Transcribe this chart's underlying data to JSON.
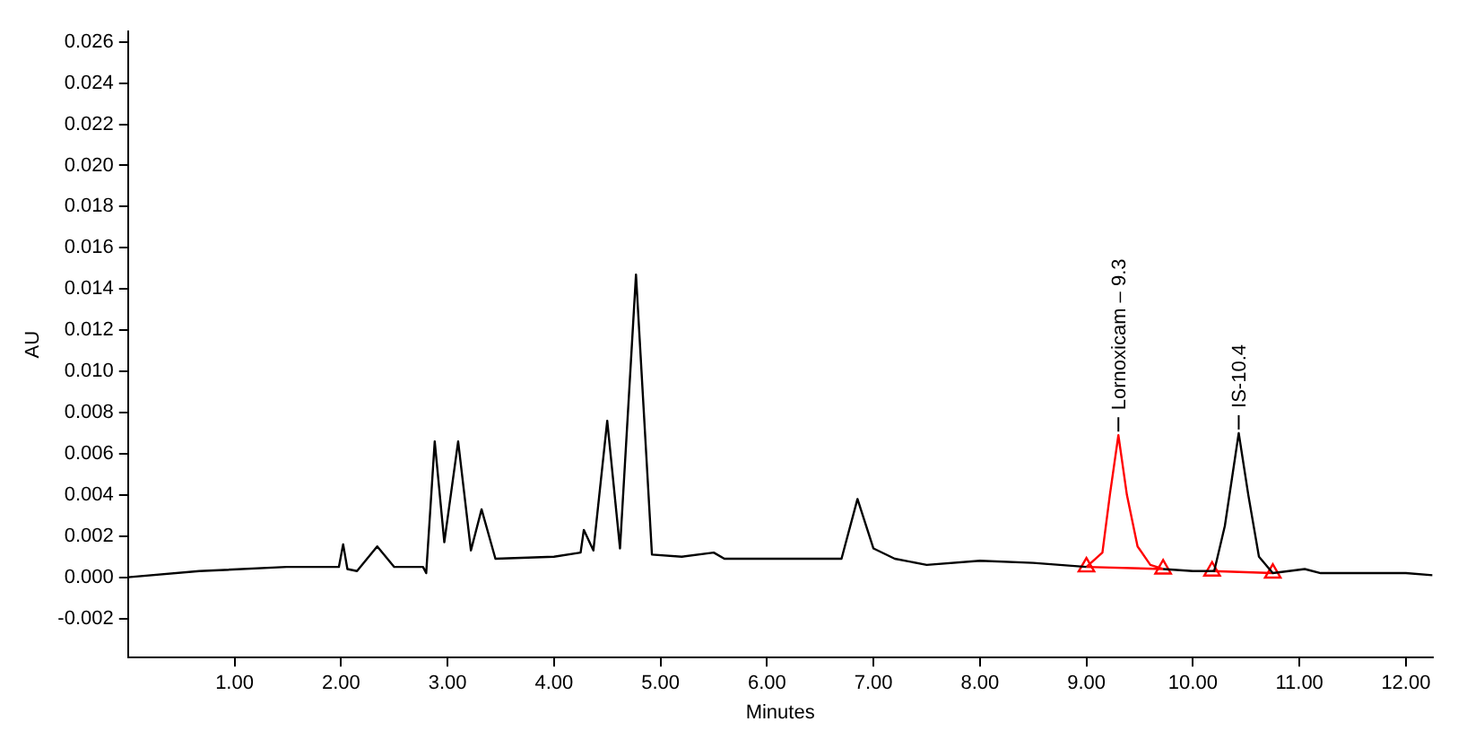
{
  "chart_data": {
    "type": "line",
    "xlabel": "Minutes",
    "ylabel": "AU",
    "xlim": [
      0,
      12.25
    ],
    "ylim": [
      -0.0039,
      0.0265
    ],
    "xticks": [
      {
        "value": 1,
        "label": "1.00"
      },
      {
        "value": 2,
        "label": "2.00"
      },
      {
        "value": 3,
        "label": "3.00"
      },
      {
        "value": 4,
        "label": "4.00"
      },
      {
        "value": 5,
        "label": "5.00"
      },
      {
        "value": 6,
        "label": "6.00"
      },
      {
        "value": 7,
        "label": "7.00"
      },
      {
        "value": 8,
        "label": "8.00"
      },
      {
        "value": 9,
        "label": "9.00"
      },
      {
        "value": 10,
        "label": "10.00"
      },
      {
        "value": 11,
        "label": "11.00"
      },
      {
        "value": 12,
        "label": "12.00"
      }
    ],
    "yticks": [
      {
        "value": -0.002,
        "label": "-0.002"
      },
      {
        "value": 0,
        "label": "0.000"
      },
      {
        "value": 0.002,
        "label": "0.002"
      },
      {
        "value": 0.004,
        "label": "0.004"
      },
      {
        "value": 0.006,
        "label": "0.006"
      },
      {
        "value": 0.008,
        "label": "0.008"
      },
      {
        "value": 0.01,
        "label": "0.010"
      },
      {
        "value": 0.012,
        "label": "0.012"
      },
      {
        "value": 0.014,
        "label": "0.014"
      },
      {
        "value": 0.016,
        "label": "0.016"
      },
      {
        "value": 0.018,
        "label": "0.018"
      },
      {
        "value": 0.02,
        "label": "0.020"
      },
      {
        "value": 0.022,
        "label": "0.022"
      },
      {
        "value": 0.024,
        "label": "0.024"
      },
      {
        "value": 0.026,
        "label": "0.026"
      }
    ],
    "grid": false,
    "legend": false,
    "series": [
      {
        "color": "#000000",
        "marker": "none",
        "x": [
          0,
          0.67,
          1.49,
          1.98,
          2.02,
          2.06,
          2.15,
          2.34,
          2.5,
          2.77,
          2.8,
          2.88,
          2.97,
          3.1,
          3.22,
          3.32,
          3.45,
          4.0,
          4.25,
          4.28,
          4.37,
          4.5,
          4.62,
          4.77,
          4.92,
          5.2,
          5.5,
          5.6,
          6.7,
          6.85,
          7.0,
          7.2,
          7.5,
          8.0,
          8.5,
          9.0,
          9.01,
          9.72,
          10.0,
          10.2,
          10.3,
          10.43,
          10.52,
          10.62,
          10.75,
          10.9,
          11.05,
          11.2,
          12.0,
          12.25
        ],
        "values": [
          0,
          0.0003,
          0.0005,
          0.0005,
          0.0016,
          0.0004,
          0.0003,
          0.0015,
          0.0005,
          0.0005,
          0.0002,
          0.0066,
          0.0017,
          0.0066,
          0.0013,
          0.0033,
          0.0009,
          0.001,
          0.0012,
          0.0023,
          0.0013,
          0.0076,
          0.0014,
          0.0147,
          0.0011,
          0.001,
          0.0012,
          0.0009,
          0.0009,
          0.0038,
          0.0014,
          0.0009,
          0.0006,
          0.0008,
          0.0007,
          0.0005,
          null,
          0.0004,
          0.0003,
          0.0003,
          0.0025,
          0.007,
          0.004,
          0.001,
          0.0002,
          0.0003,
          0.0004,
          0.0002,
          0.0002,
          0.0001
        ]
      },
      {
        "color": "#ff0000",
        "marker": "none",
        "x": [
          9.0,
          9.15,
          9.22,
          9.3,
          9.38,
          9.48,
          9.6,
          9.72
        ],
        "values": [
          0.0005,
          0.0012,
          0.004,
          0.0069,
          0.004,
          0.0015,
          0.0006,
          0.0004
        ]
      },
      {
        "color": "#ff0000",
        "marker": "triangle",
        "x": [
          9.0,
          9.72,
          9.9,
          10.18,
          10.75
        ],
        "values": [
          0.0005,
          0.0004,
          null,
          0.0003,
          0.0002
        ]
      }
    ],
    "annotations": [
      {
        "text": "Lornoxicam – 9.3",
        "x": 9.3,
        "y": 0.0069
      },
      {
        "text": "IS-10.4",
        "x": 10.43,
        "y": 0.007
      }
    ]
  }
}
